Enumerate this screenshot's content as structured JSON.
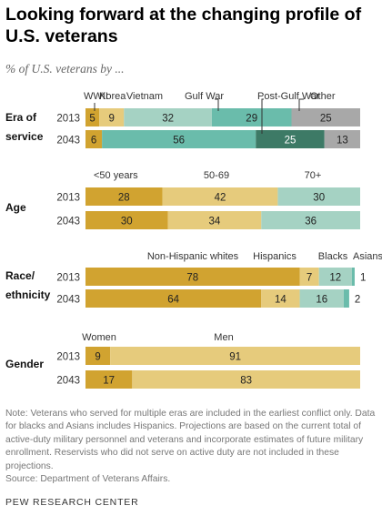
{
  "title": "Looking forward at the changing profile of U.S. veterans",
  "subtitle": "% of U.S. veterans by ...",
  "note": "Note: Veterans who served for multiple eras are included in the earliest conflict only. Data for blacks and Asians includes Hispanics. Projections are based on the current total of active-duty military personnel and veterans and incorporate estimates of future military enrollment. Reservists who did not serve on active duty are not included in these projections.",
  "source": "Source: Department of Veterans Affairs.",
  "brand": "PEW RESEARCH CENTER",
  "colors": {
    "gold": "#d1a330",
    "tan": "#e6cb7c",
    "sage": "#a5d2c3",
    "teal": "#6abcab",
    "darkteal": "#3d7a66",
    "gray": "#a8a8a8"
  },
  "chart_data": {
    "type": "bar",
    "orientation": "horizontal-stacked",
    "groups": [
      {
        "name": "Era of service",
        "label_lines": [
          "Era of",
          "service"
        ],
        "rows": [
          "2013",
          "2043"
        ],
        "categories": [
          {
            "name": "WWII",
            "color": "gold",
            "values": [
              5,
              6
            ]
          },
          {
            "name": "Korea",
            "color": "tan",
            "values": [
              9,
              0
            ]
          },
          {
            "name": "Vietnam",
            "color": "sage",
            "values": [
              32,
              0
            ]
          },
          {
            "name": "Gulf War",
            "color": "teal",
            "values": [
              29,
              56
            ]
          },
          {
            "name": "Post-Gulf War",
            "color": "darkteal",
            "values": [
              0,
              25
            ]
          },
          {
            "name": "Other",
            "color": "gray",
            "values": [
              25,
              13
            ]
          }
        ]
      },
      {
        "name": "Age",
        "label_lines": [
          "Age"
        ],
        "rows": [
          "2013",
          "2043"
        ],
        "categories": [
          {
            "name": "<50 years",
            "color": "gold",
            "values": [
              28,
              30
            ]
          },
          {
            "name": "50-69",
            "color": "tan",
            "values": [
              42,
              34
            ]
          },
          {
            "name": "70+",
            "color": "sage",
            "values": [
              30,
              36
            ]
          }
        ]
      },
      {
        "name": "Race/ethnicity",
        "label_lines": [
          "Race/",
          "ethnicity"
        ],
        "rows": [
          "2013",
          "2043"
        ],
        "categories": [
          {
            "name": "Non-Hispanic whites",
            "color": "gold",
            "values": [
              78,
              64
            ]
          },
          {
            "name": "Hispanics",
            "color": "tan",
            "values": [
              7,
              14
            ]
          },
          {
            "name": "Blacks",
            "color": "sage",
            "values": [
              12,
              16
            ]
          },
          {
            "name": "Asians",
            "color": "teal",
            "values": [
              1,
              2
            ]
          }
        ]
      },
      {
        "name": "Gender",
        "label_lines": [
          "Gender"
        ],
        "rows": [
          "2013",
          "2043"
        ],
        "categories": [
          {
            "name": "Women",
            "color": "gold",
            "values": [
              9,
              17
            ]
          },
          {
            "name": "Men",
            "color": "tan",
            "values": [
              91,
              83
            ]
          }
        ]
      }
    ]
  }
}
